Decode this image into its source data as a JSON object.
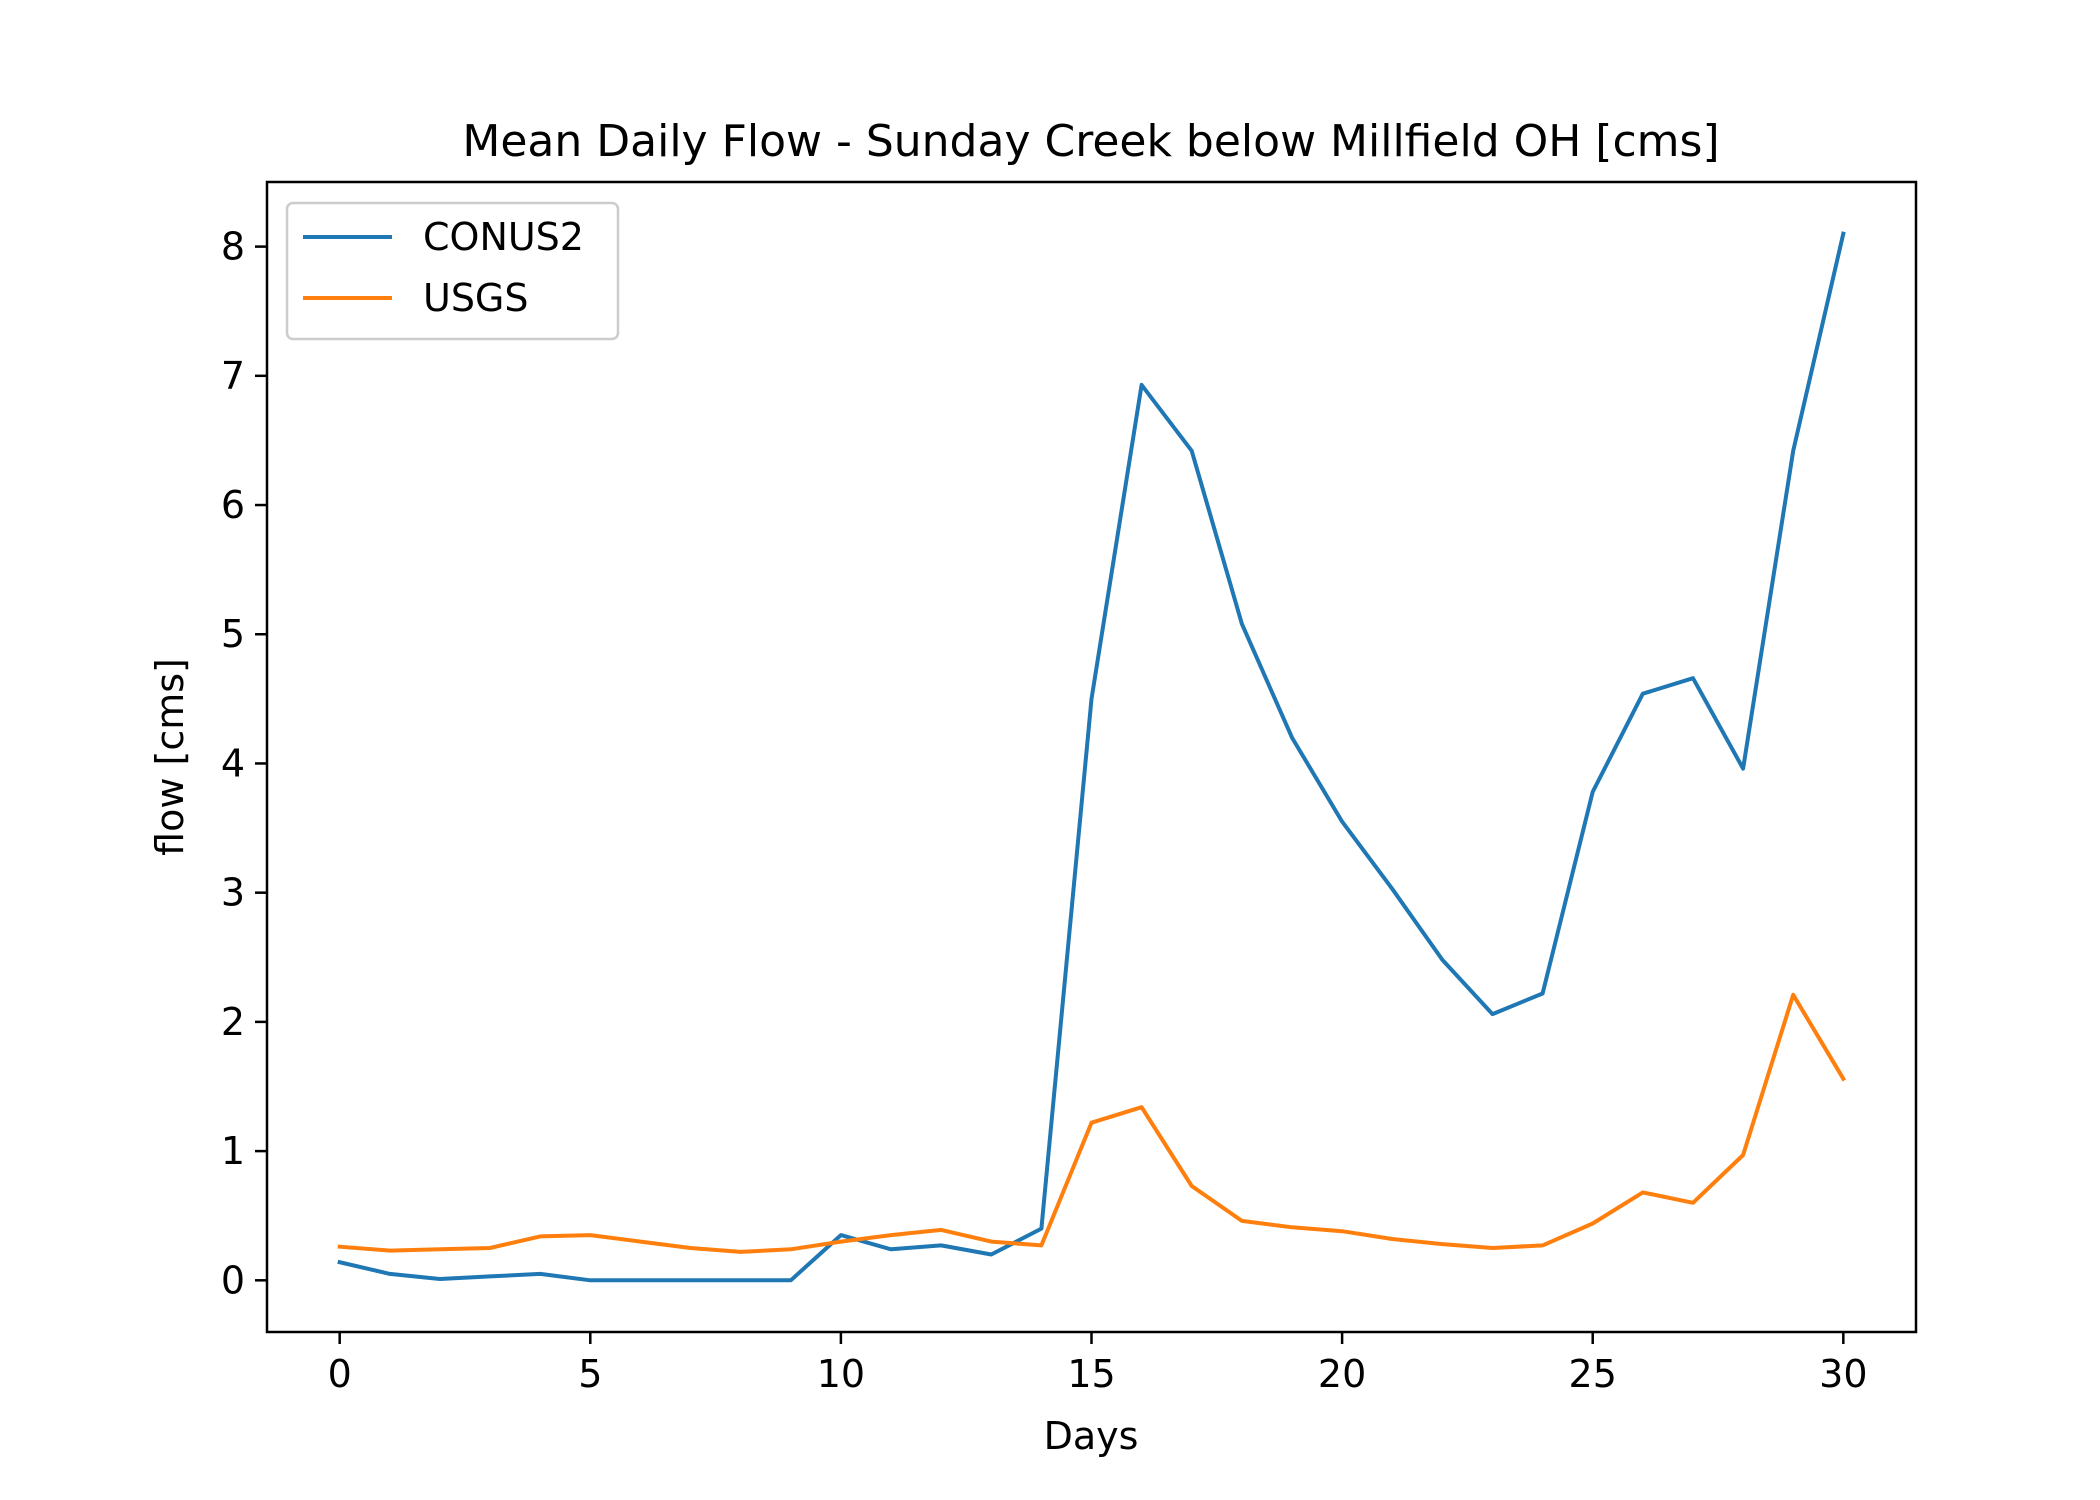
{
  "chart_data": {
    "type": "line",
    "title": "Mean Daily Flow - Sunday Creek below Millfield OH [cms]",
    "xlabel": "Days",
    "ylabel": "flow [cms]",
    "xlim": [
      -1.45,
      31.45
    ],
    "ylim": [
      -0.4,
      8.5
    ],
    "xticks": [
      0,
      5,
      10,
      15,
      20,
      25,
      30
    ],
    "yticks": [
      0,
      1,
      2,
      3,
      4,
      5,
      6,
      7,
      8
    ],
    "xtick_labels": [
      "0",
      "5",
      "10",
      "15",
      "20",
      "25",
      "30"
    ],
    "ytick_labels": [
      "0",
      "1",
      "2",
      "3",
      "4",
      "5",
      "6",
      "7",
      "8"
    ],
    "grid": false,
    "legend_position": "upper-left",
    "x": [
      0,
      1,
      2,
      3,
      4,
      5,
      6,
      7,
      8,
      9,
      10,
      11,
      12,
      13,
      14,
      15,
      16,
      17,
      18,
      19,
      20,
      21,
      22,
      23,
      24,
      25,
      26,
      27,
      28,
      29,
      30
    ],
    "series": [
      {
        "name": "CONUS2",
        "color": "#1f77b4",
        "values": [
          0.14,
          0.05,
          0.01,
          0.03,
          0.05,
          0.0,
          0.0,
          0.0,
          0.0,
          0.0,
          0.35,
          0.24,
          0.27,
          0.2,
          0.4,
          4.5,
          6.93,
          6.42,
          5.08,
          4.2,
          3.55,
          3.03,
          2.48,
          2.06,
          2.22,
          3.78,
          4.54,
          4.66,
          3.96,
          6.42,
          8.1
        ]
      },
      {
        "name": "USGS",
        "color": "#ff7f0e",
        "values": [
          0.26,
          0.23,
          0.24,
          0.25,
          0.34,
          0.35,
          0.3,
          0.25,
          0.22,
          0.24,
          0.3,
          0.35,
          0.39,
          0.3,
          0.27,
          1.22,
          1.34,
          0.73,
          0.46,
          0.41,
          0.38,
          0.32,
          0.28,
          0.25,
          0.27,
          0.44,
          0.68,
          0.6,
          0.97,
          2.21,
          1.56
        ]
      }
    ]
  }
}
